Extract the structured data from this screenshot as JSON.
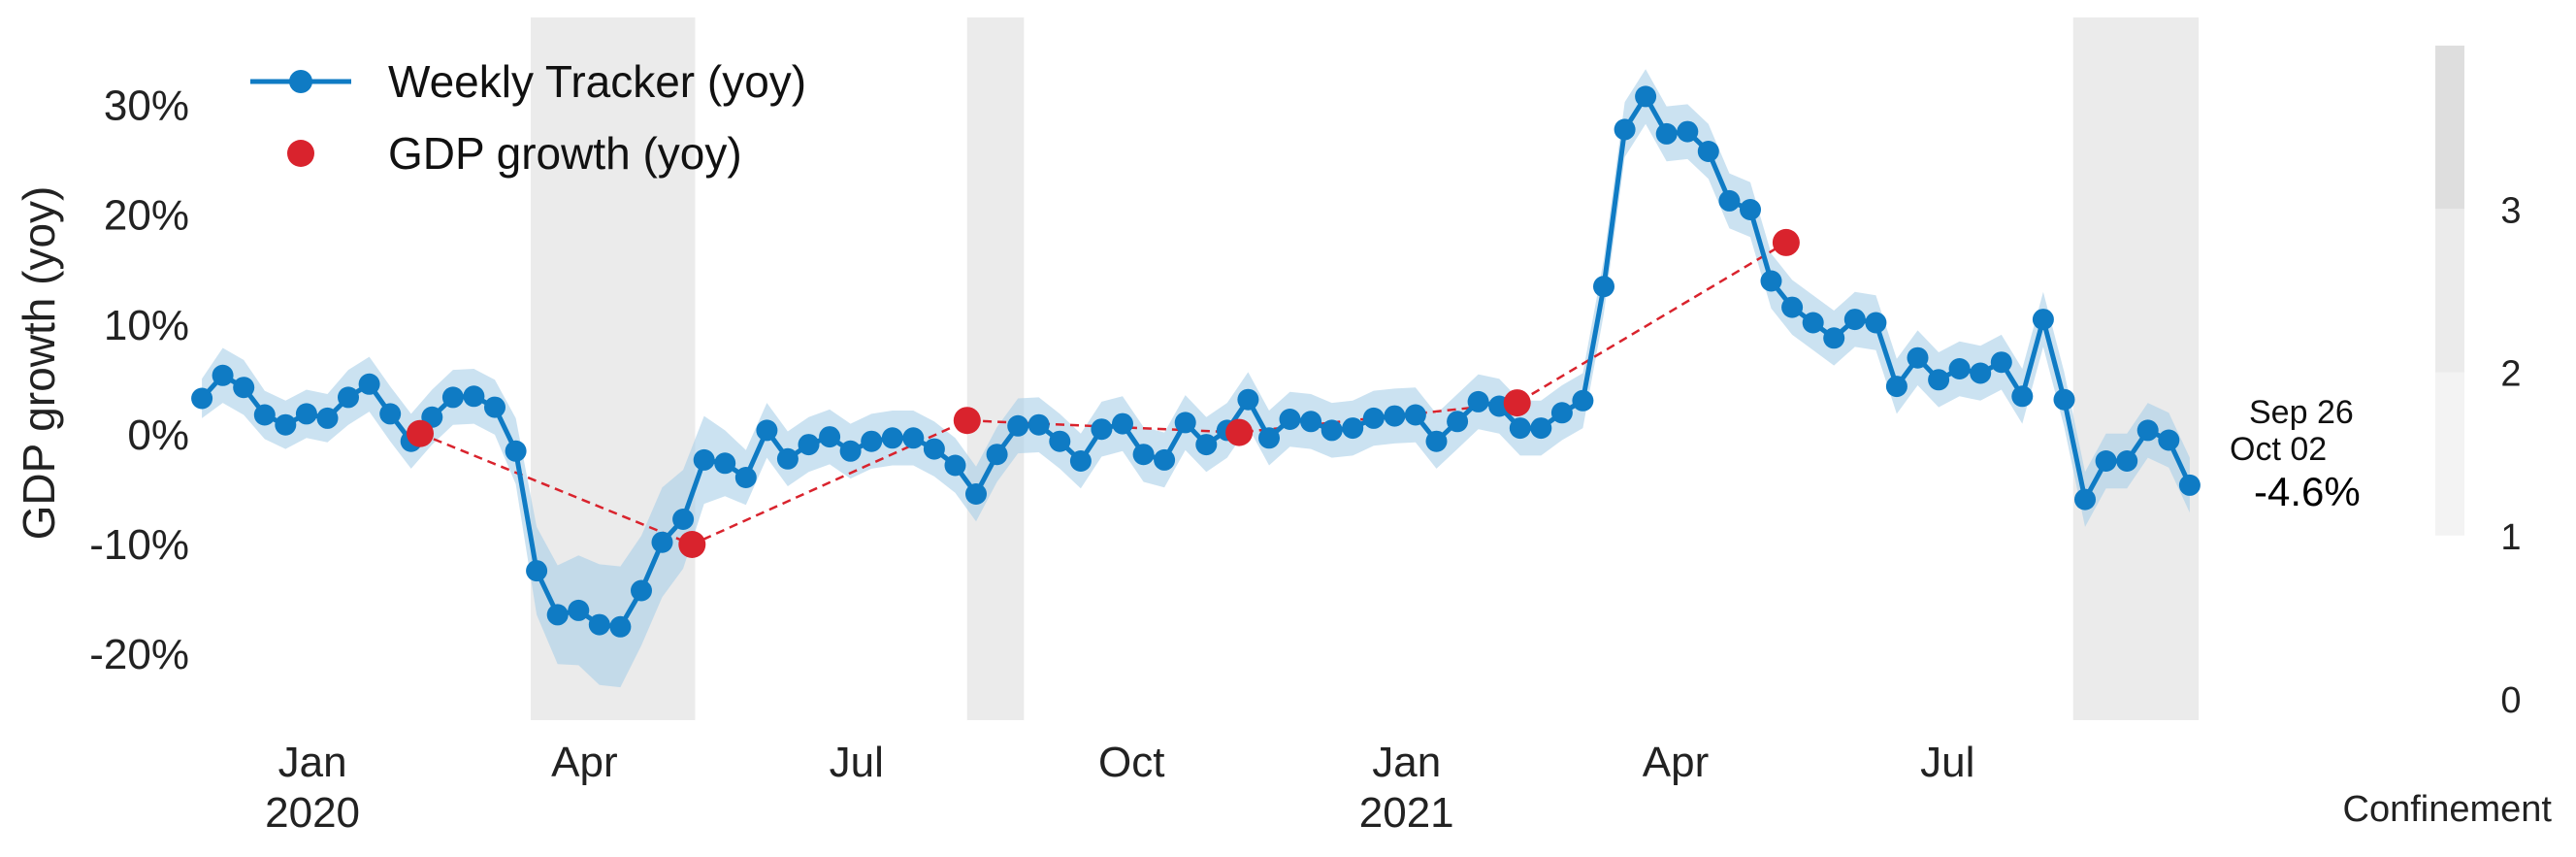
{
  "chart_data": {
    "type": "line",
    "ylabel": "GDP growth (yoy)",
    "ylim": [
      -26,
      38
    ],
    "yticks": [
      -20,
      -10,
      0,
      10,
      20,
      30
    ],
    "ytick_labels": [
      "-20%",
      "-10%",
      "0%",
      "10%",
      "20%",
      "30%"
    ],
    "xlim": [
      "2019-11-24",
      "2021-10-04"
    ],
    "xticks": [
      {
        "date": "2020-01-01",
        "label": "Jan",
        "year": "2020"
      },
      {
        "date": "2020-04-01",
        "label": "Apr",
        "year": ""
      },
      {
        "date": "2020-07-01",
        "label": "Jul",
        "year": ""
      },
      {
        "date": "2020-10-01",
        "label": "Oct",
        "year": ""
      },
      {
        "date": "2021-01-01",
        "label": "Jan",
        "year": "2021"
      },
      {
        "date": "2021-04-01",
        "label": "Apr",
        "year": ""
      },
      {
        "date": "2021-07-01",
        "label": "Jul",
        "year": ""
      }
    ],
    "grid": false,
    "legend_position": "top-left",
    "colors": {
      "tracker": "#0f7bc4",
      "band": "#a8cfe8",
      "gdp": "#d9232d",
      "confinement_1": "#f3f3f3",
      "confinement_2": "#ebebeb",
      "confinement_3": "#dedede"
    },
    "series": [
      {
        "name": "Weekly Tracker (yoy)",
        "style": "line-markers",
        "band_half_width": [
          1.8,
          2.5,
          2.5,
          2.2,
          2.2,
          2.2,
          2.2,
          2.5,
          2.5,
          2.5,
          2.5,
          2.5,
          2.5,
          2.5,
          2.5,
          3.0,
          4.0,
          4.5,
          5.0,
          5.5,
          5.5,
          5.0,
          5.0,
          4.5,
          4.0,
          3.0,
          2.5,
          2.5,
          2.5,
          2.5,
          2.5,
          2.5,
          2.5,
          2.5,
          2.5,
          2.5,
          2.5,
          2.5,
          2.5,
          2.5,
          2.5,
          2.5,
          2.5,
          2.5,
          2.5,
          2.5,
          2.5,
          2.5,
          2.5,
          2.5,
          2.5,
          2.5,
          2.5,
          2.5,
          2.5,
          2.5,
          2.5,
          2.5,
          2.5,
          2.5,
          2.5,
          2.5,
          2.5,
          2.5,
          2.5,
          2.5,
          2.5,
          2.5,
          2.5,
          2.5,
          2.5,
          2.5,
          2.5,
          2.5,
          2.5,
          2.5,
          2.5,
          2.5,
          2.5,
          2.5,
          2.5,
          2.5,
          2.5,
          2.5,
          2.5,
          2.5,
          2.5,
          2.5,
          2.5,
          2.5,
          2.5,
          2.5,
          2.5,
          2.5,
          2.5,
          2.5,
          2.5,
          2.5,
          2.5,
          2.5,
          2.5,
          2.5,
          2.5,
          2.5,
          2.5,
          2.5,
          2.5,
          2.5,
          2.5
        ],
        "points": [
          [
            "2019-11-25",
            3.3
          ],
          [
            "2019-12-02",
            5.4
          ],
          [
            "2019-12-09",
            4.3
          ],
          [
            "2019-12-16",
            1.8
          ],
          [
            "2019-12-23",
            0.9
          ],
          [
            "2019-12-30",
            1.9
          ],
          [
            "2020-01-06",
            1.5
          ],
          [
            "2020-01-13",
            3.4
          ],
          [
            "2020-01-20",
            4.6
          ],
          [
            "2020-01-27",
            1.9
          ],
          [
            "2020-02-03",
            -0.6
          ],
          [
            "2020-02-10",
            1.6
          ],
          [
            "2020-02-17",
            3.4
          ],
          [
            "2020-02-24",
            3.5
          ],
          [
            "2020-03-02",
            2.5
          ],
          [
            "2020-03-09",
            -1.5
          ],
          [
            "2020-03-16",
            -12.4
          ],
          [
            "2020-03-23",
            -16.4
          ],
          [
            "2020-03-30",
            -16.0
          ],
          [
            "2020-04-06",
            -17.3
          ],
          [
            "2020-04-13",
            -17.5
          ],
          [
            "2020-04-20",
            -14.2
          ],
          [
            "2020-04-27",
            -9.8
          ],
          [
            "2020-05-04",
            -7.7
          ],
          [
            "2020-05-11",
            -2.3
          ],
          [
            "2020-05-18",
            -2.6
          ],
          [
            "2020-05-25",
            -3.9
          ],
          [
            "2020-06-01",
            0.4
          ],
          [
            "2020-06-08",
            -2.2
          ],
          [
            "2020-06-15",
            -0.9
          ],
          [
            "2020-06-22",
            -0.2
          ],
          [
            "2020-06-29",
            -1.5
          ],
          [
            "2020-07-06",
            -0.6
          ],
          [
            "2020-07-13",
            -0.3
          ],
          [
            "2020-07-20",
            -0.3
          ],
          [
            "2020-07-27",
            -1.3
          ],
          [
            "2020-08-03",
            -2.8
          ],
          [
            "2020-08-10",
            -5.4
          ],
          [
            "2020-08-17",
            -1.8
          ],
          [
            "2020-08-24",
            0.8
          ],
          [
            "2020-08-31",
            0.9
          ],
          [
            "2020-09-07",
            -0.6
          ],
          [
            "2020-09-14",
            -2.4
          ],
          [
            "2020-09-21",
            0.5
          ],
          [
            "2020-09-28",
            1.0
          ],
          [
            "2020-10-05",
            -1.8
          ],
          [
            "2020-10-12",
            -2.3
          ],
          [
            "2020-10-19",
            1.1
          ],
          [
            "2020-10-26",
            -0.9
          ],
          [
            "2020-11-02",
            0.4
          ],
          [
            "2020-11-09",
            3.2
          ],
          [
            "2020-11-16",
            -0.3
          ],
          [
            "2020-11-23",
            1.4
          ],
          [
            "2020-11-30",
            1.2
          ],
          [
            "2020-12-07",
            0.4
          ],
          [
            "2020-12-14",
            0.6
          ],
          [
            "2020-12-21",
            1.5
          ],
          [
            "2020-12-28",
            1.7
          ],
          [
            "2021-01-04",
            1.8
          ],
          [
            "2021-01-11",
            -0.6
          ],
          [
            "2021-01-18",
            1.2
          ],
          [
            "2021-01-25",
            3.0
          ],
          [
            "2021-02-01",
            2.6
          ],
          [
            "2021-02-08",
            0.6
          ],
          [
            "2021-02-15",
            0.6
          ],
          [
            "2021-02-22",
            2.0
          ],
          [
            "2021-03-01",
            3.1
          ],
          [
            "2021-03-08",
            13.5
          ],
          [
            "2021-03-15",
            27.8
          ],
          [
            "2021-03-22",
            30.8
          ],
          [
            "2021-03-29",
            27.4
          ],
          [
            "2021-04-05",
            27.6
          ],
          [
            "2021-04-12",
            25.8
          ],
          [
            "2021-04-19",
            21.3
          ],
          [
            "2021-04-26",
            20.5
          ],
          [
            "2021-05-03",
            14.0
          ],
          [
            "2021-05-10",
            11.6
          ],
          [
            "2021-05-17",
            10.2
          ],
          [
            "2021-05-24",
            8.8
          ],
          [
            "2021-05-31",
            10.5
          ],
          [
            "2021-06-07",
            10.2
          ],
          [
            "2021-06-14",
            4.4
          ],
          [
            "2021-06-21",
            7.0
          ],
          [
            "2021-06-28",
            5.0
          ],
          [
            "2021-07-05",
            6.0
          ],
          [
            "2021-07-12",
            5.6
          ],
          [
            "2021-07-19",
            6.6
          ],
          [
            "2021-07-26",
            3.5
          ],
          [
            "2021-08-02",
            10.5
          ],
          [
            "2021-08-09",
            3.2
          ],
          [
            "2021-08-16",
            -5.9
          ],
          [
            "2021-08-23",
            -2.4
          ],
          [
            "2021-08-30",
            -2.4
          ],
          [
            "2021-09-06",
            0.4
          ],
          [
            "2021-09-13",
            -0.5
          ],
          [
            "2021-09-20",
            -4.6
          ]
        ]
      },
      {
        "name": "GDP growth (yoy)",
        "style": "dashed-markers",
        "points": [
          [
            "2020-02-06",
            0.1
          ],
          [
            "2020-05-07",
            -10.0
          ],
          [
            "2020-08-07",
            1.3
          ],
          [
            "2020-11-06",
            0.2
          ],
          [
            "2021-02-07",
            2.9
          ],
          [
            "2021-05-08",
            17.5
          ]
        ]
      }
    ],
    "confinement_periods": [
      {
        "start": "2020-03-14",
        "end": "2020-05-08",
        "level": 2
      },
      {
        "start": "2020-08-07",
        "end": "2020-08-26",
        "level": 2
      },
      {
        "start": "2021-08-12",
        "end": "2021-09-23",
        "level": 2
      }
    ],
    "annotations": {
      "last_date_1": "Sep 26",
      "last_date_2": "Oct 02",
      "last_value": "-4.6%"
    },
    "colorbar": {
      "label": "Confinement",
      "ticks": [
        "0",
        "1",
        "2",
        "3"
      ],
      "range": [
        0,
        4
      ]
    }
  }
}
